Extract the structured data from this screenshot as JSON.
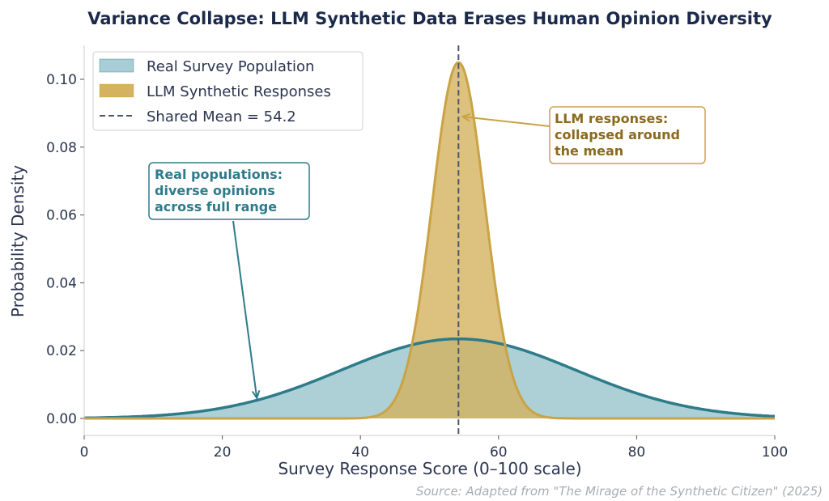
{
  "chart_data": {
    "type": "area",
    "title": "Variance Collapse: LLM Synthetic Data Erases Human Opinion Diversity",
    "xlabel": "Survey Response Score (0–100 scale)",
    "ylabel": "Probability Density",
    "xlim": [
      0,
      100
    ],
    "ylim": [
      -0.005,
      0.11
    ],
    "xticks": [
      0,
      20,
      40,
      60,
      80,
      100
    ],
    "xtick_labels": [
      "0",
      "20",
      "40",
      "60",
      "80",
      "100"
    ],
    "yticks": [
      0.0,
      0.02,
      0.04,
      0.06,
      0.08,
      0.1
    ],
    "ytick_labels": [
      "0.00",
      "0.02",
      "0.04",
      "0.06",
      "0.08",
      "0.10"
    ],
    "grid": false,
    "legend_position": "top-left",
    "series": [
      {
        "name": "Real Survey Population",
        "distribution": "normal",
        "mean": 54.2,
        "std": 17.0,
        "peak_density": 0.0235,
        "fill_color": "#a8cdd4",
        "line_color": "#2e7b89"
      },
      {
        "name": "LLM Synthetic Responses",
        "distribution": "normal",
        "mean": 54.2,
        "std": 3.8,
        "peak_density": 0.105,
        "fill_color": "#d4b25e",
        "line_color": "#c9a345"
      }
    ],
    "mean_line": {
      "label": "Shared Mean = 54.2",
      "x": 54.2,
      "color": "#4a5670"
    },
    "annotations": [
      {
        "lines": [
          "LLM responses:",
          "collapsed around",
          "the mean"
        ],
        "target_x": 54.2,
        "target_y": 0.089,
        "color": "#8a6a1c",
        "border": "#c9a345"
      },
      {
        "lines": [
          "Real populations:",
          "diverse opinions",
          "across full range"
        ],
        "target_x": 25,
        "target_y": 0.006,
        "color": "#2e7b89",
        "border": "#2e7b89"
      }
    ],
    "source": "Source: Adapted from \"The Mirage of the Synthetic Citizen\" (2025)"
  }
}
